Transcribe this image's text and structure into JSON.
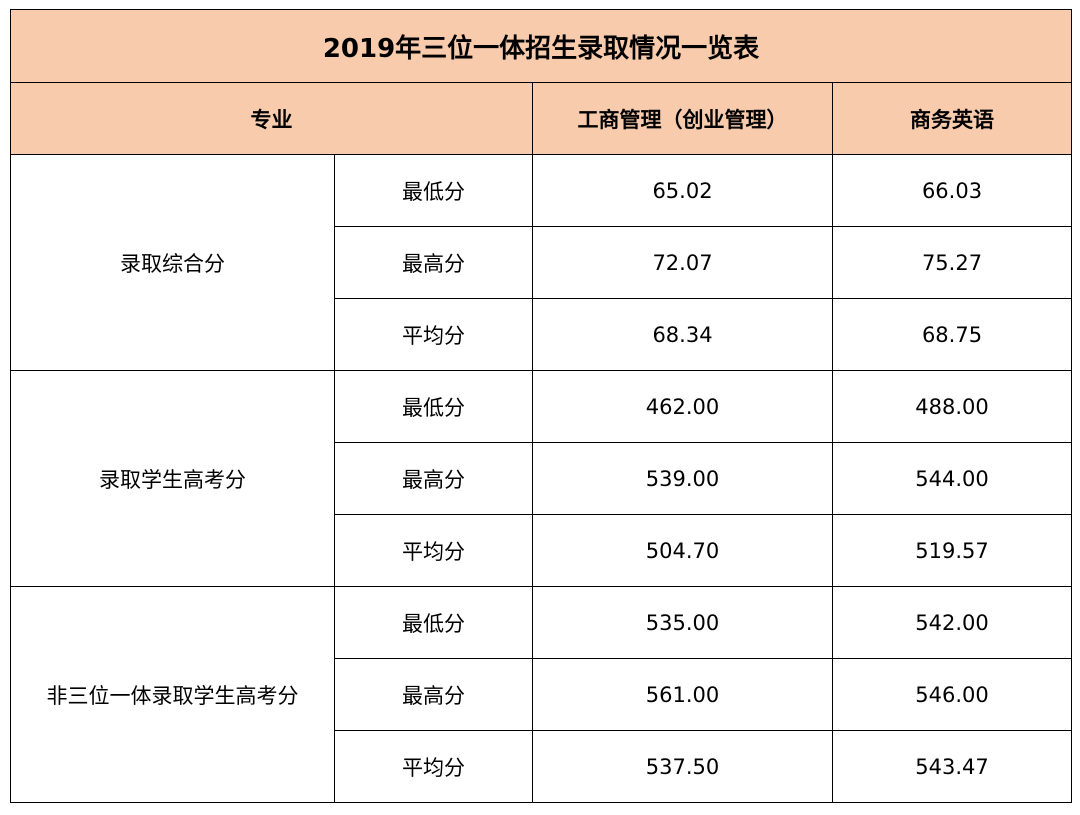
{
  "table": {
    "title": "2019年三位一体招生录取情况一览表",
    "header": {
      "major_label": "专业",
      "columns": [
        "工商管理（创业管理）",
        "商务英语"
      ]
    },
    "groups": [
      {
        "name": "录取综合分",
        "rows": [
          {
            "metric": "最低分",
            "values": [
              "65.02",
              "66.03"
            ]
          },
          {
            "metric": "最高分",
            "values": [
              "72.07",
              "75.27"
            ]
          },
          {
            "metric": "平均分",
            "values": [
              "68.34",
              "68.75"
            ]
          }
        ]
      },
      {
        "name": "录取学生高考分",
        "rows": [
          {
            "metric": "最低分",
            "values": [
              "462.00",
              "488.00"
            ]
          },
          {
            "metric": "最高分",
            "values": [
              "539.00",
              "544.00"
            ]
          },
          {
            "metric": "平均分",
            "values": [
              "504.70",
              "519.57"
            ]
          }
        ]
      },
      {
        "name": "非三位一体录取学生高考分",
        "rows": [
          {
            "metric": "最低分",
            "values": [
              "535.00",
              "542.00"
            ]
          },
          {
            "metric": "最高分",
            "values": [
              "561.00",
              "546.00"
            ]
          },
          {
            "metric": "平均分",
            "values": [
              "537.50",
              "543.47"
            ]
          }
        ]
      }
    ],
    "colors": {
      "header_background": "#f8cbad",
      "border": "#000000"
    }
  }
}
